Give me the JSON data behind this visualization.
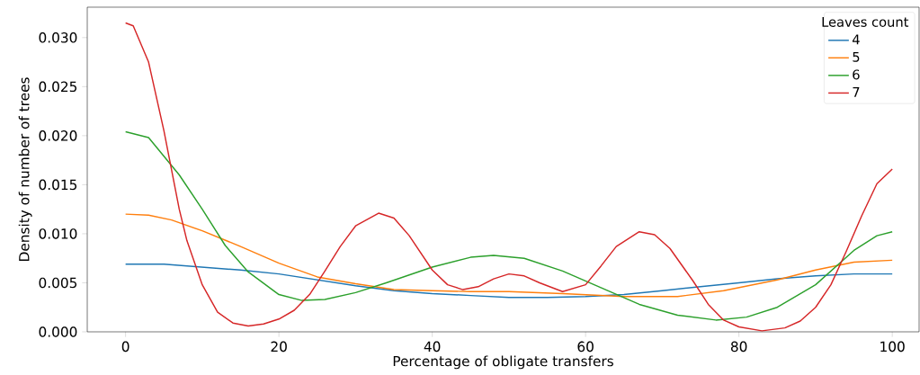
{
  "chart_data": {
    "type": "line",
    "xlabel": "Percentage of obligate transfers",
    "ylabel": "Density of number of trees",
    "legend_title": "Leaves count",
    "legend": "top right",
    "grid": false,
    "marker": "none",
    "line_style": "solid",
    "xlim": [
      -5,
      103.5
    ],
    "ylim": [
      0,
      0.0331
    ],
    "xticks": [
      0,
      20,
      40,
      60,
      80,
      100
    ],
    "yticks": [
      {
        "value": 0,
        "label": "0.000"
      },
      {
        "value": 0.005,
        "label": "0.005"
      },
      {
        "value": 0.01,
        "label": "0.010"
      },
      {
        "value": 0.015,
        "label": "0.015"
      },
      {
        "value": 0.02,
        "label": "0.020"
      },
      {
        "value": 0.025,
        "label": "0.025"
      },
      {
        "value": 0.03,
        "label": "0.030"
      }
    ],
    "series": [
      {
        "name": "4",
        "color": "#1f77b4",
        "x": [
          0,
          5,
          10,
          15,
          20,
          25,
          30,
          35,
          40,
          45,
          50,
          55,
          60,
          65,
          70,
          75,
          80,
          85,
          90,
          95,
          100
        ],
        "values": [
          0.0069,
          0.0069,
          0.0066,
          0.0063,
          0.0059,
          0.0053,
          0.0047,
          0.0042,
          0.0039,
          0.0037,
          0.0035,
          0.0035,
          0.0036,
          0.0038,
          0.0042,
          0.0046,
          0.005,
          0.0054,
          0.0057,
          0.0059,
          0.0059
        ]
      },
      {
        "name": "5",
        "color": "#ff7f0e",
        "x": [
          0,
          3,
          6,
          10,
          15,
          20,
          25,
          30,
          35,
          40,
          45,
          50,
          57,
          65,
          72,
          78,
          85,
          90,
          95,
          100
        ],
        "values": [
          0.012,
          0.0119,
          0.0114,
          0.0103,
          0.0087,
          0.007,
          0.0056,
          0.0049,
          0.0043,
          0.0042,
          0.0041,
          0.0041,
          0.0039,
          0.0036,
          0.0036,
          0.0042,
          0.0053,
          0.0063,
          0.0071,
          0.0073
        ]
      },
      {
        "name": "6",
        "color": "#2ca02c",
        "x": [
          0,
          3,
          7,
          10,
          13,
          16,
          20,
          23,
          26,
          30,
          34,
          40,
          45,
          48,
          52,
          57,
          62,
          67,
          72,
          77,
          81,
          85,
          90,
          95,
          98,
          100
        ],
        "values": [
          0.0204,
          0.0198,
          0.016,
          0.0125,
          0.0088,
          0.0061,
          0.0038,
          0.0032,
          0.0033,
          0.004,
          0.005,
          0.0066,
          0.0076,
          0.0078,
          0.0075,
          0.0062,
          0.0045,
          0.0028,
          0.0017,
          0.0012,
          0.0015,
          0.0025,
          0.0048,
          0.0083,
          0.0098,
          0.0102
        ]
      },
      {
        "name": "7",
        "color": "#d62728",
        "x": [
          0,
          1,
          3,
          5,
          7,
          8,
          10,
          12,
          14,
          16,
          18,
          20,
          22,
          24,
          26,
          28,
          30,
          33,
          35,
          37,
          40,
          42,
          44,
          46,
          48,
          50,
          52,
          54,
          57,
          60,
          62,
          64,
          67,
          69,
          71,
          74,
          76,
          78,
          80,
          83,
          86,
          88,
          90,
          92,
          94,
          96,
          98,
          100
        ],
        "values": [
          0.0315,
          0.0312,
          0.0275,
          0.0205,
          0.0125,
          0.0093,
          0.0048,
          0.002,
          0.0009,
          0.0006,
          0.0008,
          0.0013,
          0.0022,
          0.0038,
          0.0062,
          0.0087,
          0.0108,
          0.0121,
          0.0116,
          0.0098,
          0.0063,
          0.0048,
          0.0043,
          0.0046,
          0.0054,
          0.0059,
          0.0057,
          0.005,
          0.0041,
          0.0048,
          0.0067,
          0.0087,
          0.0102,
          0.0099,
          0.0085,
          0.0052,
          0.0028,
          0.0012,
          0.0005,
          0.0001,
          0.0004,
          0.0011,
          0.0025,
          0.0048,
          0.0082,
          0.0118,
          0.0151,
          0.0166
        ]
      }
    ]
  }
}
